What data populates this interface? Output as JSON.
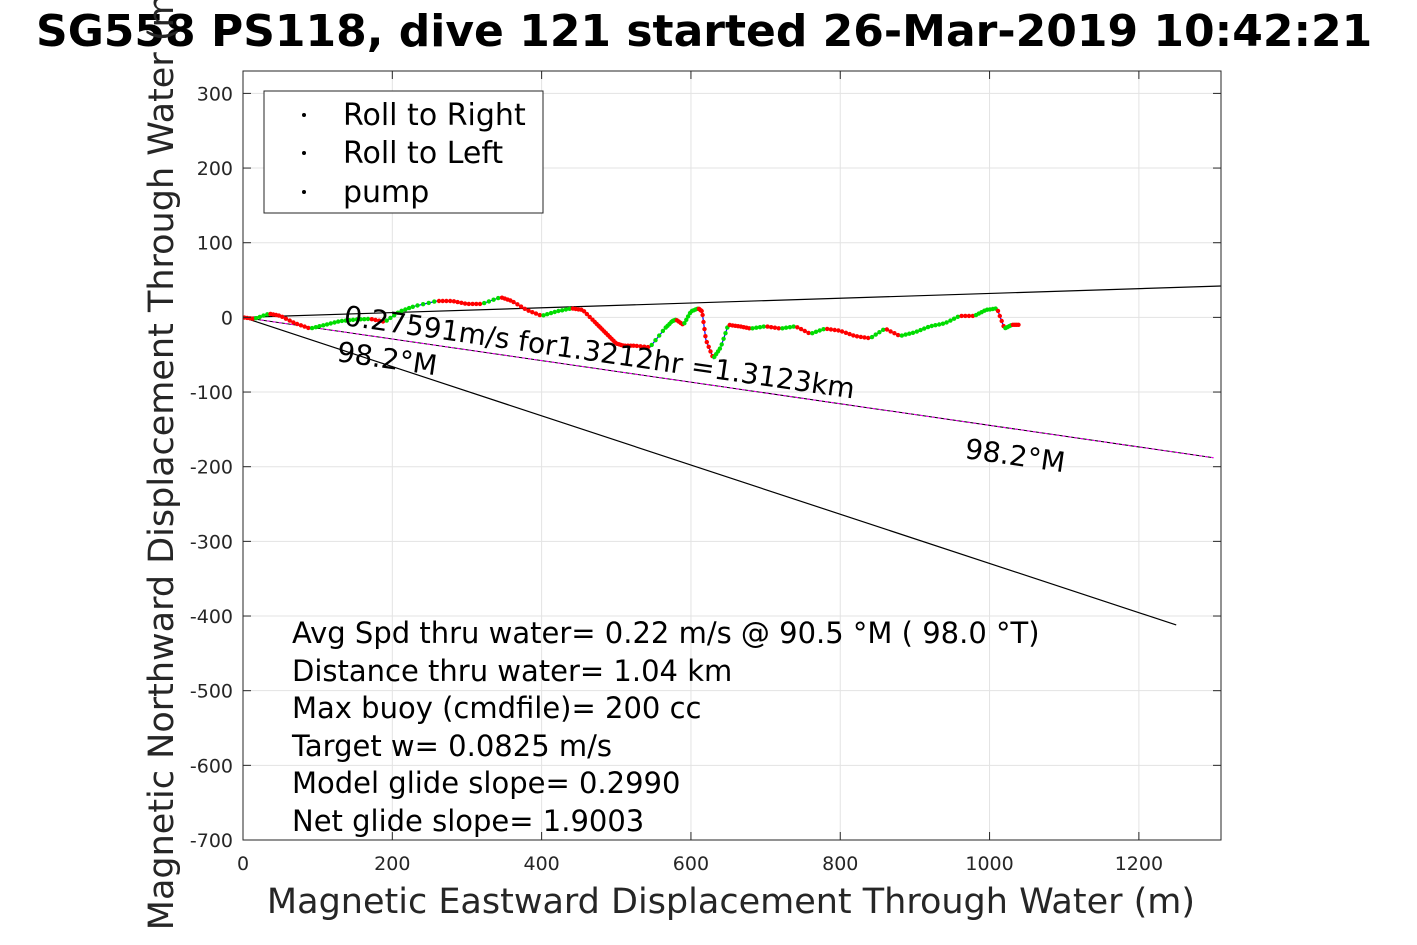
{
  "chart_data": {
    "type": "line",
    "title": "SG558 PS118, dive 121 started 26-Mar-2019 10:42:21",
    "xlabel": "Magnetic Eastward Displacement Through Water (m)",
    "ylabel": "Magnetic Northward Displacement Through Water (m)",
    "xlim": [
      0,
      1310
    ],
    "ylim": [
      -700,
      330
    ],
    "xticks": [
      0,
      200,
      400,
      600,
      800,
      1000,
      1200
    ],
    "yticks": [
      300,
      200,
      100,
      0,
      -100,
      -200,
      -300,
      -400,
      -500,
      -600,
      -700
    ],
    "grid": true,
    "legend": {
      "placement": "top-left",
      "entries": [
        {
          "label": "Roll to Right",
          "color": "#00dd00"
        },
        {
          "label": "Roll to Left",
          "color": "#ff0000"
        },
        {
          "label": "pump",
          "color": "#000000"
        }
      ]
    },
    "colors": {
      "track": "#0000ff",
      "heading_line": "#ff00ff",
      "reference_lines": "#000000"
    },
    "track": {
      "x": [
        0,
        15,
        35,
        50,
        70,
        90,
        110,
        130,
        150,
        170,
        190,
        210,
        230,
        260,
        280,
        300,
        320,
        345,
        360,
        380,
        400,
        420,
        440,
        455,
        470,
        480,
        490,
        500,
        510,
        525,
        545,
        565,
        575,
        580,
        590,
        600,
        610,
        615,
        620,
        630,
        640,
        650,
        665,
        680,
        700,
        720,
        740,
        760,
        780,
        800,
        820,
        840,
        860,
        880,
        900,
        920,
        940,
        960,
        980,
        995,
        1010,
        1020,
        1030,
        1040
      ],
      "y": [
        0,
        -2,
        5,
        2,
        -8,
        -15,
        -10,
        -5,
        -3,
        -2,
        -6,
        8,
        15,
        22,
        22,
        18,
        18,
        27,
        22,
        10,
        2,
        8,
        12,
        10,
        -5,
        -15,
        -25,
        -35,
        -38,
        -38,
        -40,
        -15,
        -5,
        -3,
        -10,
        8,
        12,
        8,
        -30,
        -55,
        -40,
        -10,
        -12,
        -15,
        -12,
        -15,
        -12,
        -22,
        -15,
        -18,
        -25,
        -28,
        -15,
        -25,
        -20,
        -12,
        -8,
        2,
        2,
        10,
        12,
        -15,
        -10,
        -10
      ]
    },
    "heading_line": {
      "x": [
        0,
        1300
      ],
      "y": [
        0,
        -188
      ]
    },
    "reference_lines": [
      {
        "x": [
          0,
          1310
        ],
        "y": [
          0,
          42
        ]
      },
      {
        "x": [
          0,
          1250
        ],
        "y": [
          0,
          -412
        ]
      }
    ],
    "annotations": [
      {
        "text": "0.27591m/s for1.3212hr =1.3123km",
        "x": 132,
        "y": -5
      },
      {
        "text": "98.2°M",
        "x": 125,
        "y": -50
      },
      {
        "text": "98.2°M",
        "x": 965,
        "y": -182
      }
    ],
    "notes": [
      "Avg Spd thru water=  0.22 m/s @  90.5 °M ( 98.0 °T)",
      "Distance thru water=  1.04 km",
      "Max buoy (cmdfile)= 200 cc",
      "Target w= 0.0825 m/s",
      "Model glide slope= 0.2990",
      "Net glide slope= 1.9003"
    ]
  }
}
